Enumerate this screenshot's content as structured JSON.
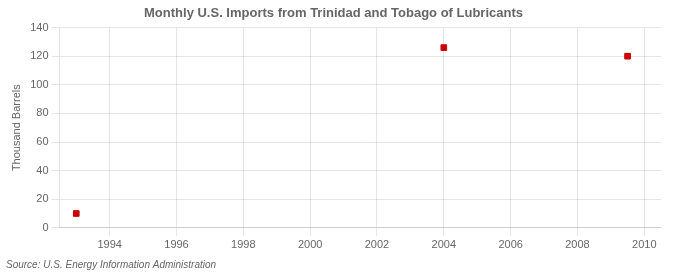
{
  "chart_data": {
    "type": "scatter",
    "title": "Monthly U.S. Imports from Trinidad and Tobago of Lubricants",
    "ylabel": "Thousand Barrels",
    "annotations": [
      "Source: U.S. Energy Information Administration"
    ],
    "x": [
      1993.0,
      2004.0,
      2009.5
    ],
    "values": [
      10,
      126,
      120
    ],
    "color": "#cc0000",
    "marker": "square",
    "xlim": [
      1992.5,
      2010.5
    ],
    "ylim": [
      0,
      140
    ],
    "xticks": [
      1994,
      1996,
      1998,
      2000,
      2002,
      2004,
      2006,
      2008,
      2010
    ],
    "yticks": [
      0,
      20,
      40,
      60,
      80,
      100,
      120,
      140
    ],
    "grid": true
  }
}
